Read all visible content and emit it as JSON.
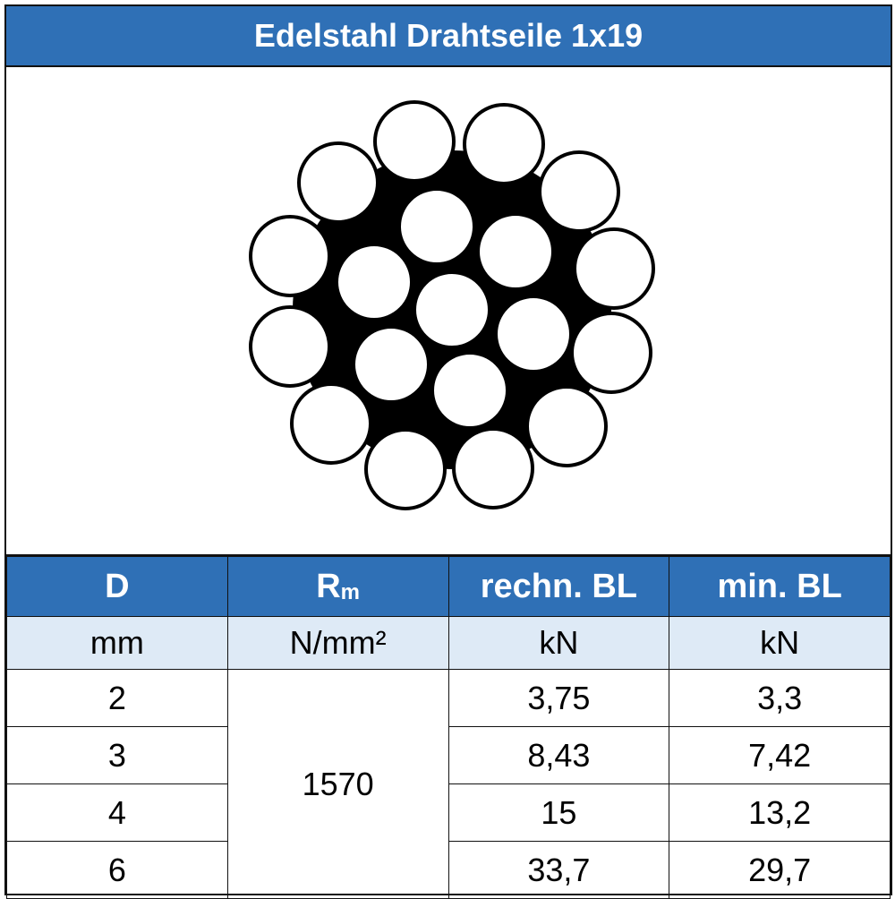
{
  "header": {
    "title": "Edelstahl Drahtseile 1x19"
  },
  "table": {
    "columns": [
      "D",
      {
        "main": "R",
        "sub": "m"
      },
      "rechn. BL",
      "min. BL"
    ],
    "units": [
      "mm",
      "N/mm²",
      "kN",
      "kN"
    ],
    "rows": [
      [
        "2",
        "1570",
        "3,75",
        "3,3"
      ],
      [
        "3",
        null,
        "8,43",
        "7,42"
      ],
      [
        "4",
        null,
        "15",
        "13,2"
      ],
      [
        "6",
        null,
        "33,7",
        "29,7"
      ]
    ]
  }
}
